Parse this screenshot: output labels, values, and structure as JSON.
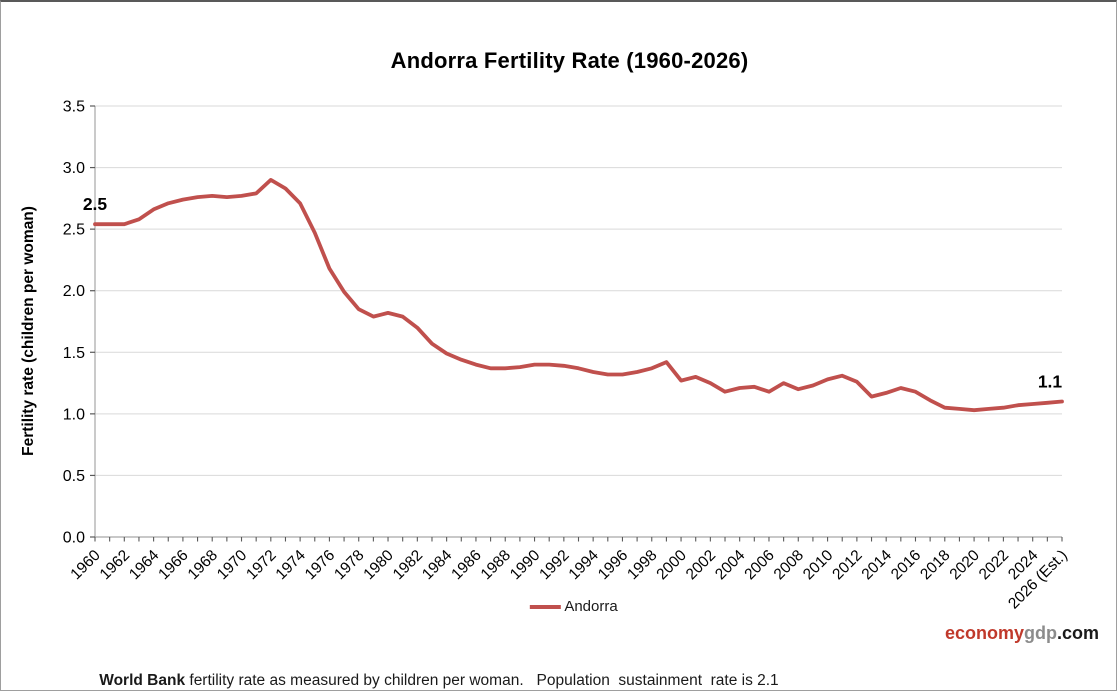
{
  "page_title": "Andorra Fertility Rate (1960-2026)",
  "colors": {
    "series_line": "#C0504D",
    "gridline": "#D9D9D9",
    "axis_line": "#A6A6A6",
    "tick_mark": "#595959",
    "text": "#000000",
    "logo_red": "#C0392B",
    "logo_gray": "#8C8C8C",
    "logo_black": "#1A1A1A"
  },
  "chart_data": {
    "type": "line",
    "title": "Andorra Fertility Rate (1960-2026)",
    "xlabel": "",
    "ylabel": "Fertility rate (children per woman)",
    "ylim": [
      0.0,
      3.5
    ],
    "ytick_step": 0.5,
    "grid": true,
    "legend_position": "bottom-center",
    "x_tick_labels": [
      "1960",
      "1962",
      "1964",
      "1966",
      "1968",
      "1970",
      "1972",
      "1974",
      "1976",
      "1978",
      "1980",
      "1982",
      "1984",
      "1986",
      "1988",
      "1990",
      "1992",
      "1994",
      "1996",
      "1998",
      "2000",
      "2002",
      "2004",
      "2006",
      "2008",
      "2010",
      "2012",
      "2014",
      "2016",
      "2018",
      "2020",
      "2022",
      "2024",
      "2026 (Est.)"
    ],
    "series": [
      {
        "name": "Andorra",
        "color": "#C0504D",
        "x": [
          1960,
          1961,
          1962,
          1963,
          1964,
          1965,
          1966,
          1967,
          1968,
          1969,
          1970,
          1971,
          1972,
          1973,
          1974,
          1975,
          1976,
          1977,
          1978,
          1979,
          1980,
          1981,
          1982,
          1983,
          1984,
          1985,
          1986,
          1987,
          1988,
          1989,
          1990,
          1991,
          1992,
          1993,
          1994,
          1995,
          1996,
          1997,
          1998,
          1999,
          2000,
          2001,
          2002,
          2003,
          2004,
          2005,
          2006,
          2007,
          2008,
          2009,
          2010,
          2011,
          2012,
          2013,
          2014,
          2015,
          2016,
          2017,
          2018,
          2019,
          2020,
          2021,
          2022,
          2023,
          2024,
          2025,
          2026
        ],
        "values": [
          2.54,
          2.54,
          2.54,
          2.58,
          2.66,
          2.71,
          2.74,
          2.76,
          2.77,
          2.76,
          2.77,
          2.79,
          2.9,
          2.83,
          2.71,
          2.47,
          2.18,
          1.99,
          1.85,
          1.79,
          1.82,
          1.79,
          1.7,
          1.57,
          1.49,
          1.44,
          1.4,
          1.37,
          1.37,
          1.38,
          1.4,
          1.4,
          1.39,
          1.37,
          1.34,
          1.32,
          1.32,
          1.34,
          1.37,
          1.42,
          1.27,
          1.3,
          1.25,
          1.18,
          1.21,
          1.22,
          1.18,
          1.25,
          1.2,
          1.23,
          1.28,
          1.31,
          1.26,
          1.14,
          1.17,
          1.21,
          1.18,
          1.11,
          1.05,
          1.04,
          1.03,
          1.04,
          1.05,
          1.07,
          1.08,
          1.09,
          1.1
        ]
      }
    ],
    "point_labels": [
      {
        "x": 1960,
        "label": "2.5"
      },
      {
        "x": 2026,
        "label": "1.1"
      }
    ]
  },
  "legend": {
    "label": "Andorra"
  },
  "branding": {
    "economy": "economy",
    "gdp": "gdp",
    "com": ".com"
  },
  "footnote": {
    "bold": "World Bank",
    "text": " fertility rate as measured by children per woman.   Population  sustainment  rate is 2.1"
  }
}
